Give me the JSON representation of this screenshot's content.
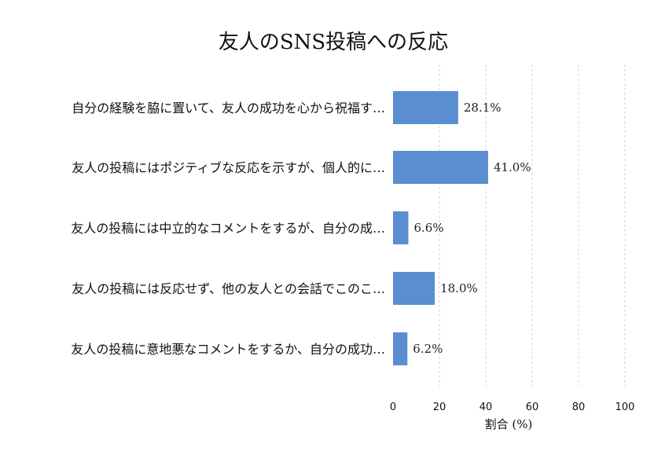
{
  "chart_data": {
    "type": "bar",
    "orientation": "horizontal",
    "title": "友人のSNS投稿への反応",
    "xlabel": "割合 (%)",
    "ylabel": "",
    "xlim": [
      0,
      100
    ],
    "xticks": [
      0,
      20,
      40,
      60,
      80,
      100
    ],
    "grid": "vertical dashed",
    "bar_color": "#5b8ed0",
    "categories": [
      "自分の経験を脇に置いて、友人の成功を心から祝福す…",
      "友人の投稿にはポジティブな反応を示すが、個人的に…",
      "友人の投稿には中立的なコメントをするが、自分の成…",
      "友人の投稿には反応せず、他の友人との会話でこのこ…",
      "友人の投稿に意地悪なコメントをするか、自分の成功…"
    ],
    "values": [
      28.1,
      41.0,
      6.6,
      18.0,
      6.2
    ],
    "value_labels": [
      "28.1%",
      "41.0%",
      "6.6%",
      "18.0%",
      "6.2%"
    ]
  }
}
